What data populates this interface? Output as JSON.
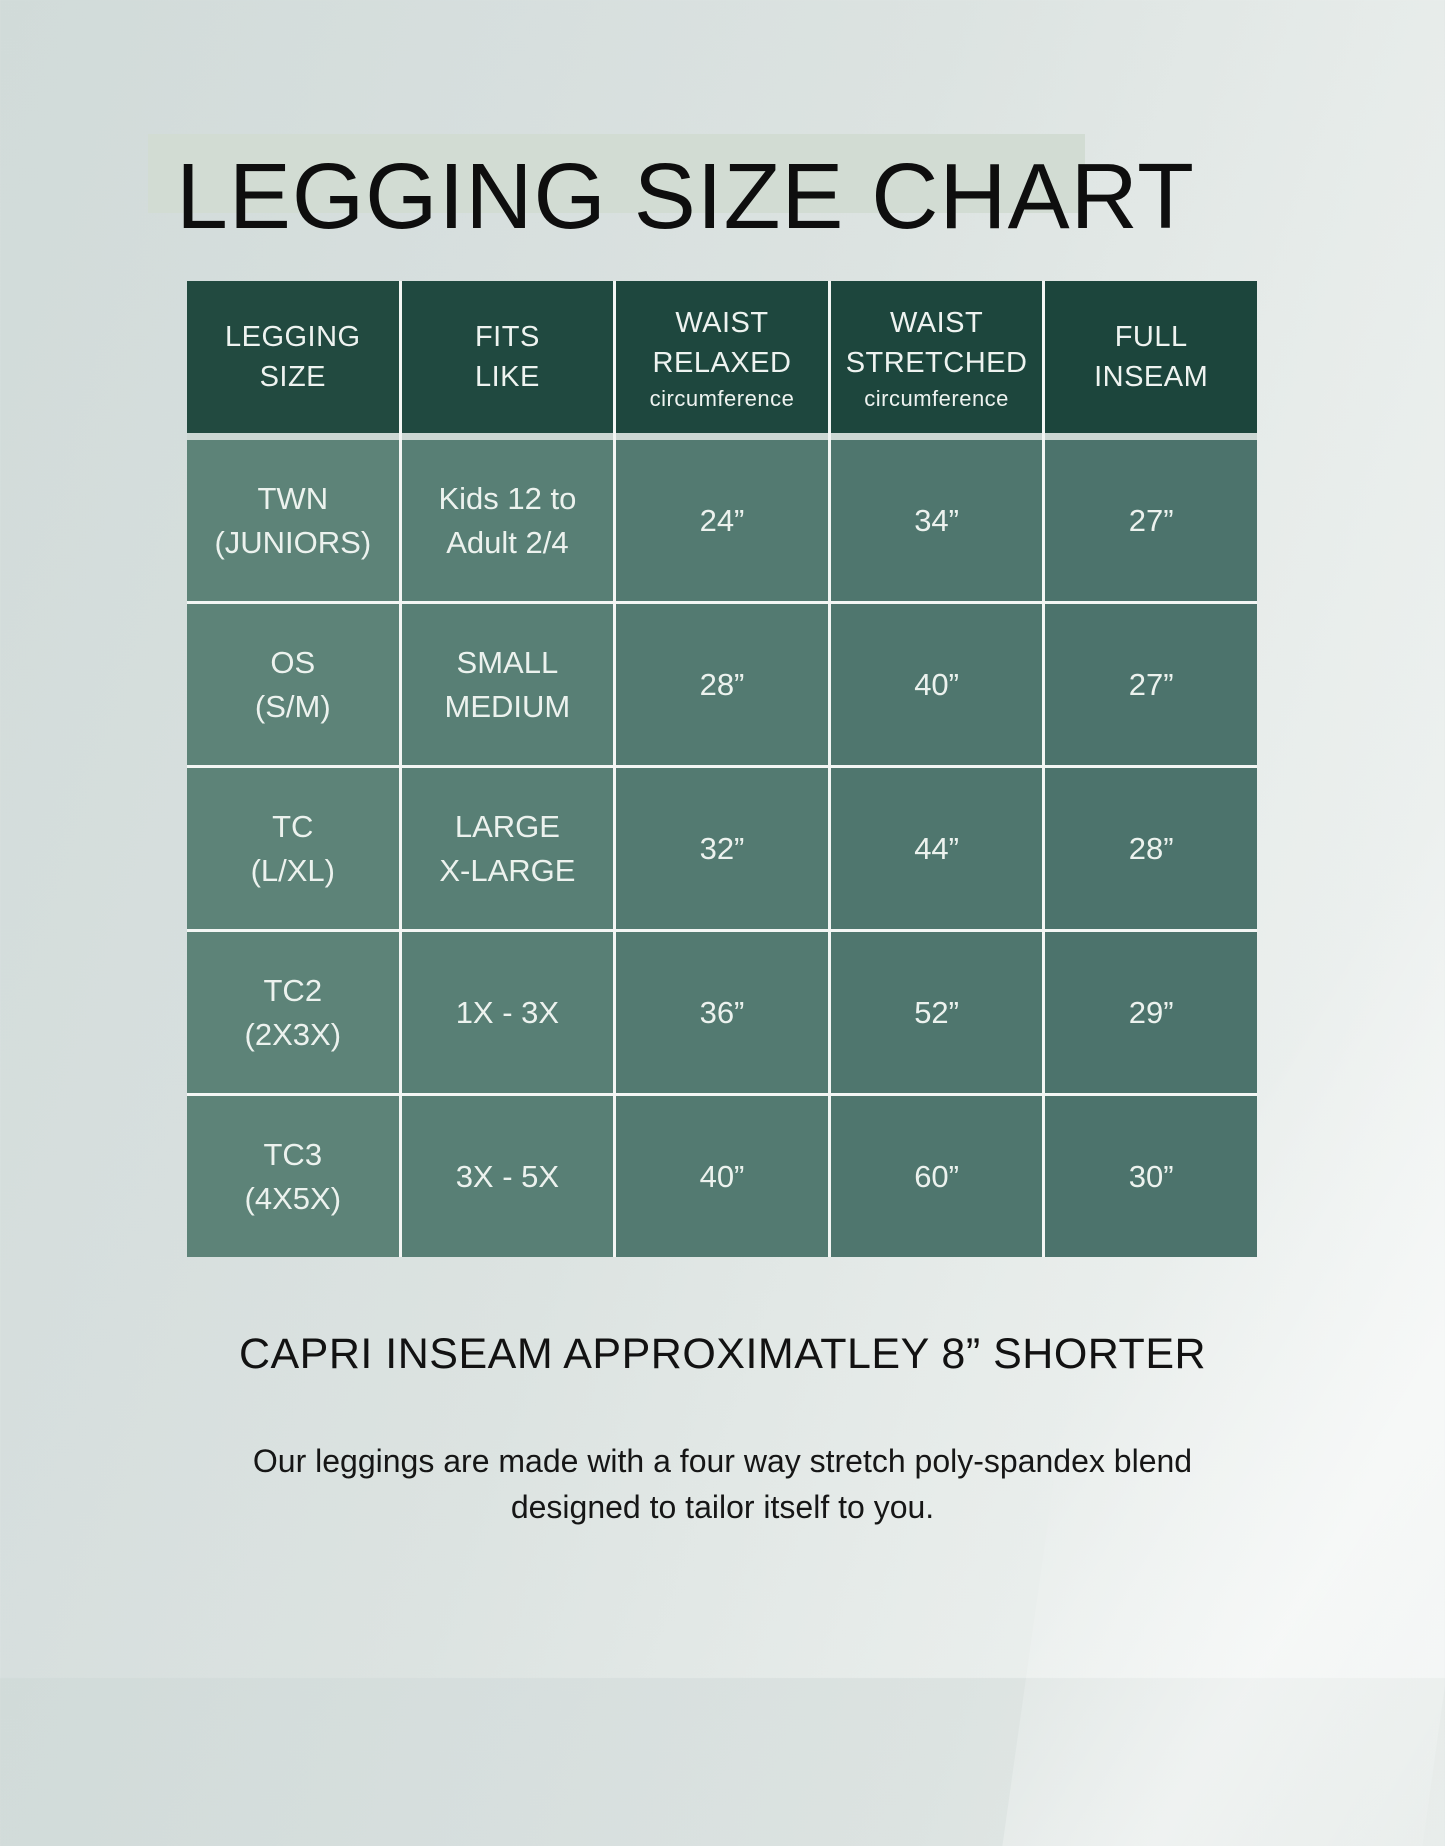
{
  "title": {
    "text": "LEGGING SIZE CHART"
  },
  "table": {
    "header": [
      {
        "label": "LEGGING\nSIZE",
        "sub": ""
      },
      {
        "label": "FITS\nLIKE",
        "sub": ""
      },
      {
        "label": "WAIST\nRELAXED",
        "sub": "circumference"
      },
      {
        "label": "WAIST\nSTRETCHED",
        "sub": "circumference"
      },
      {
        "label": "FULL\nINSEAM",
        "sub": ""
      }
    ],
    "rows": [
      [
        "TWN\n(JUNIORS)",
        "Kids 12 to\nAdult 2/4",
        "24”",
        "34”",
        "27”"
      ],
      [
        "OS\n(S/M)",
        "SMALL\nMEDIUM",
        "28”",
        "40”",
        "27”"
      ],
      [
        "TC\n(L/XL)",
        "LARGE\nX-LARGE",
        "32”",
        "44”",
        "28”"
      ],
      [
        "TC2\n(2X3X)",
        "1X - 3X",
        "36”",
        "52”",
        "29”"
      ],
      [
        "TC3\n(4X5X)",
        "3X - 5X",
        "40”",
        "60”",
        "30”"
      ]
    ]
  },
  "notes": {
    "capri": "CAPRI INSEAM APPROXIMATLEY 8” SHORTER",
    "description": "Our leggings are made with a four way stretch poly-spandex blend\ndesigned to tailor itself to you."
  },
  "colors": {
    "header_green": "#1e473e",
    "body_green": "#537a71",
    "grid_line": "#f3f6f4",
    "header_separator": "#ccd7d3",
    "title_highlight": "#d2dcd3",
    "background_top_left": "#d1dbd9",
    "background_bottom_right": "#f1f4f3",
    "cell_text": "#ecf2ee",
    "heading_text": "#0e0e0e"
  },
  "chart_data": {
    "type": "table",
    "title": "LEGGING SIZE CHART",
    "columns": [
      "LEGGING SIZE",
      "FITS LIKE",
      "WAIST RELAXED circumference",
      "WAIST STRETCHED circumference",
      "FULL INSEAM"
    ],
    "rows": [
      [
        "TWN (JUNIORS)",
        "Kids 12 to Adult 2/4",
        "24”",
        "34”",
        "27”"
      ],
      [
        "OS (S/M)",
        "SMALL MEDIUM",
        "28”",
        "40”",
        "27”"
      ],
      [
        "TC (L/XL)",
        "LARGE X-LARGE",
        "32”",
        "44”",
        "28”"
      ],
      [
        "TC2 (2X3X)",
        "1X - 3X",
        "36”",
        "52”",
        "29”"
      ],
      [
        "TC3 (4X5X)",
        "3X - 5X",
        "40”",
        "60”",
        "30”"
      ]
    ],
    "notes": [
      "CAPRI INSEAM APPROXIMATLEY 8” SHORTER",
      "Our leggings are made with a four way stretch poly-spandex blend designed to tailor itself to you."
    ]
  }
}
